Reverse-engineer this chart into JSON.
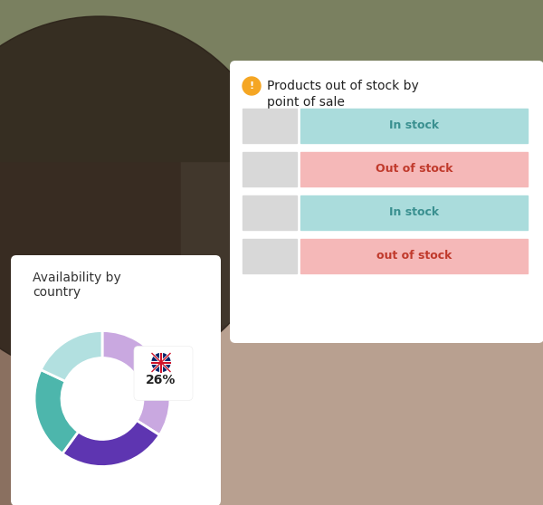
{
  "title": "Products out of stock by\npoint of sale",
  "icon_color": "#f5a623",
  "bar_rows": [
    {
      "label": "In stock",
      "type": "in",
      "color": "#aadcdc",
      "text_color": "#3a9090"
    },
    {
      "label": "Out of stock",
      "type": "out",
      "color": "#f5b8b8",
      "text_color": "#c0392b"
    },
    {
      "label": "In stock",
      "type": "in",
      "color": "#aadcdc",
      "text_color": "#3a9090"
    },
    {
      "label": "out of stock",
      "type": "out",
      "color": "#f5b8b8",
      "text_color": "#c0392b"
    }
  ],
  "gray_bar_color": "#d8d8d8",
  "card_bg": "#ffffff",
  "title_color": "#222222",
  "donut_title": "Availability by\ncountry",
  "donut_slices": [
    {
      "value": 34,
      "color": "#c9a8e0"
    },
    {
      "value": 26,
      "color": "#5e35b1"
    },
    {
      "value": 22,
      "color": "#4db6ac"
    },
    {
      "value": 18,
      "color": "#b2e0e0"
    }
  ],
  "donut_label": "26%",
  "bg_top": "#c8a090",
  "bg_bottom": "#6a7a5a",
  "figsize": [
    6.0,
    5.58
  ],
  "dpi": 100
}
